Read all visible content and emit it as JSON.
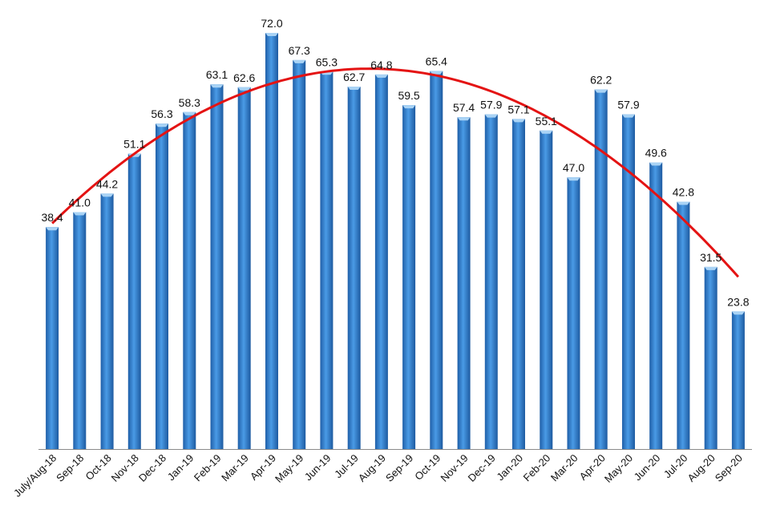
{
  "chart_data": {
    "type": "bar",
    "title": "",
    "xlabel": "",
    "ylabel": "",
    "ylim": [
      0,
      72
    ],
    "grid": false,
    "legend": "none",
    "trendline": "polynomial",
    "categories": [
      "July/Aug-18",
      "Sep-18",
      "Oct-18",
      "Nov-18",
      "Dec-18",
      "Jan-19",
      "Feb-19",
      "Mar-19",
      "Apr-19",
      "May-19",
      "Jun-19",
      "Jul-19",
      "Aug-19",
      "Sep-19",
      "Oct-19",
      "Nov-19",
      "Dec-19",
      "Jan-20",
      "Feb-20",
      "Mar-20",
      "Apr-20",
      "May-20",
      "Jun-20",
      "Jul-20",
      "Aug-20",
      "Sep-20"
    ],
    "values": [
      38.4,
      41.0,
      44.2,
      51.1,
      56.3,
      58.3,
      63.1,
      62.6,
      72.0,
      67.3,
      65.3,
      62.7,
      64.8,
      59.5,
      65.4,
      57.4,
      57.9,
      57.1,
      55.1,
      47.0,
      62.2,
      57.9,
      49.6,
      42.8,
      31.5,
      23.8
    ],
    "labels": [
      "38.4",
      "41.0",
      "44.2",
      "51.1",
      "56.3",
      "58.3",
      "63.1",
      "62.6",
      "72.0",
      "67.3",
      "65.3",
      "62.7",
      "64.8",
      "59.5",
      "65.4",
      "57.4",
      "57.9",
      "57.1",
      "55.1",
      "47.0",
      "62.2",
      "57.9",
      "49.6",
      "42.8",
      "31.5",
      "23.8"
    ],
    "colors": {
      "bar": "#2f7fd0",
      "bar_top": "#a9d3f5",
      "trend": "#e41313",
      "axis": "#8a8a8a"
    }
  }
}
